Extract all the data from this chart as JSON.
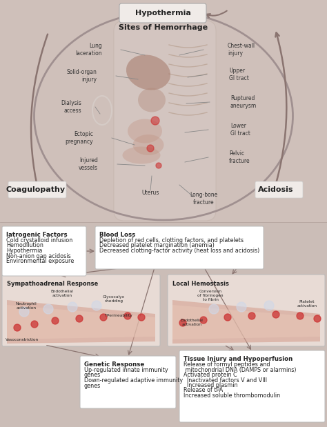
{
  "bg_top": "#cfc0ba",
  "bg_bottom": "#cbbdb7",
  "hypothermia_label": "Hypothermia",
  "sites_label": "Sites of Hemorrhage",
  "coagulopathy_label": "Coagulopathy",
  "acidosis_label": "Acidosis",
  "iatrogenic_title": "Iatrogenic Factors",
  "iatrogenic_items": [
    "Cold crystalloid infusion",
    "Hemodilution",
    "Hypothermia",
    "Non-anion gap acidosis",
    "Environmental exposure"
  ],
  "blood_loss_title": "Blood Loss",
  "blood_loss_items": [
    "Depletion of red cells, clotting factors, and platelets",
    "Decreased platelet margination (anemia)",
    "Decreased clotting-factor activity (heat loss and acidosis)"
  ],
  "sympathoadrenal_title": "Sympathoadrenal Response",
  "sympathoadrenal_labels": [
    "Endothelial\nactivation",
    "Glycocalyx\nshedding",
    "Neutrophil\nactivation",
    "↑Permeability",
    "Vasoconstriction"
  ],
  "local_hemostasis_title": "Local Hemostasis",
  "local_hemostasis_labels": [
    "Conversion\nof fibrinogen\nto fibrin",
    "Endothelial\nactivation",
    "Platelet\nactivation"
  ],
  "genetic_title": "Genetic Response",
  "genetic_items": [
    "Up-regulated innate immunity",
    "genes",
    "Down-regulated adaptive immunity",
    "genes"
  ],
  "tissue_title": "Tissue Injury and Hypoperfusion",
  "tissue_items": [
    "Release of formyl peptides and",
    " mitochondrial DNA (DAMPS or alarmins)",
    "Activated protein C",
    "  Inactivated factors V and VIII",
    "  Increased plasmin",
    "Release of tPA",
    "Increased soluble thrombomodulin"
  ],
  "arrow_color": "#8a7470",
  "box_edge_color": "#bbbbbb",
  "box_face_color": "#ffffff",
  "text_color": "#222222",
  "label_color": "#333333"
}
